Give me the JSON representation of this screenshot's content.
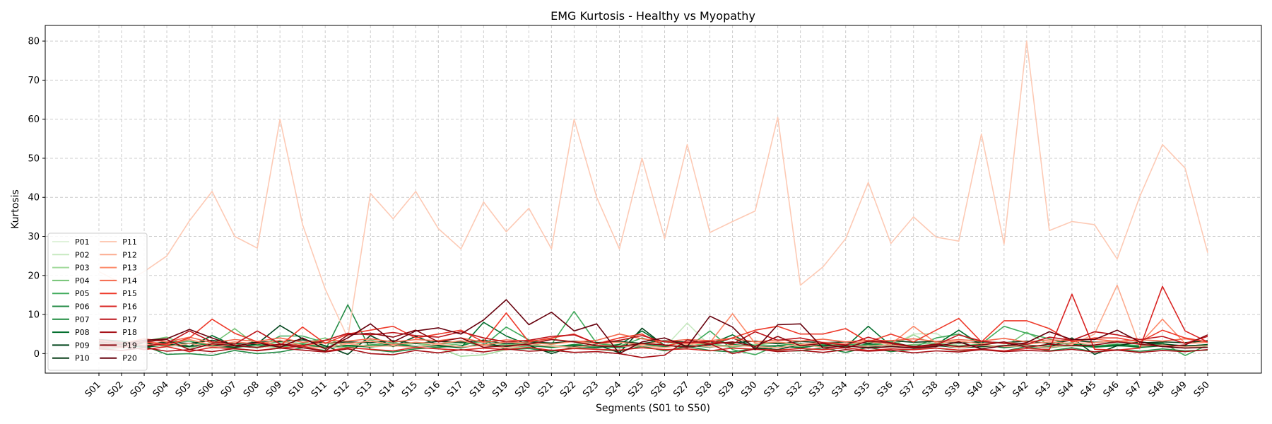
{
  "chart_data": {
    "type": "line",
    "title": "EMG Kurtosis - Healthy vs Myopathy",
    "xlabel": "Segments (S01 to S50)",
    "ylabel": "Kurtosis",
    "ylim": [
      -5,
      84
    ],
    "yticks": [
      0,
      10,
      20,
      30,
      40,
      50,
      60,
      70,
      80
    ],
    "grid": true,
    "legend_position": "lower-left",
    "categories": [
      "S01",
      "S02",
      "S03",
      "S04",
      "S05",
      "S06",
      "S07",
      "S08",
      "S09",
      "S10",
      "S11",
      "S12",
      "S13",
      "S14",
      "S15",
      "S16",
      "S17",
      "S18",
      "S19",
      "S20",
      "S21",
      "S22",
      "S23",
      "S24",
      "S25",
      "S26",
      "S27",
      "S28",
      "S29",
      "S30",
      "S31",
      "S32",
      "S33",
      "S34",
      "S35",
      "S36",
      "S37",
      "S38",
      "S39",
      "S40",
      "S41",
      "S42",
      "S43",
      "S44",
      "S45",
      "S46",
      "S47",
      "S48",
      "S49",
      "S50"
    ],
    "series": [
      {
        "name": "P01",
        "color": "#e0f2db",
        "values": [
          2.5,
          1.8,
          2.2,
          1.5,
          2.8,
          1.2,
          2.0,
          1.6,
          2.4,
          1.9,
          1.3,
          2.7,
          1.8,
          2.1,
          1.4,
          2.6,
          1.7,
          2.3,
          1.5,
          2.0,
          1.8,
          2.4,
          1.6,
          2.2,
          1.9,
          1.4,
          2.5,
          1.7,
          2.1,
          1.8,
          1.5,
          2.3,
          1.9,
          1.6,
          2.2,
          1.4,
          2.0,
          1.8,
          2.5,
          1.6,
          2.1,
          1.9,
          1.5,
          2.4,
          1.7,
          2.0,
          1.6,
          2.3,
          1.8,
          1.9
        ]
      },
      {
        "name": "P02",
        "color": "#c7e9c0",
        "values": [
          3.0,
          2.2,
          1.5,
          2.8,
          1.9,
          2.4,
          1.6,
          2.0,
          1.3,
          2.6,
          1.8,
          2.1,
          1.5,
          2.3,
          1.7,
          2.0,
          1.4,
          2.5,
          1.9,
          1.6,
          2.2,
          1.8,
          1.5,
          2.0,
          2.7,
          1.6,
          7.8,
          2.0,
          1.8,
          2.4,
          1.6,
          2.1,
          1.7,
          2.3,
          1.5,
          2.0,
          5.0,
          5.2,
          1.9,
          1.6,
          2.2,
          1.8,
          1.5,
          2.1,
          1.7,
          2.3,
          1.4,
          2.0,
          1.8,
          1.6
        ]
      },
      {
        "name": "P03",
        "color": "#a1d99b",
        "values": [
          2.0,
          3.2,
          1.8,
          2.5,
          1.4,
          2.9,
          1.7,
          2.2,
          1.5,
          2.7,
          1.9,
          1.4,
          2.4,
          1.8,
          2.6,
          1.5,
          -0.7,
          -0.3,
          1.0,
          2.2,
          1.5,
          2.0,
          1.7,
          2.4,
          1.6,
          2.1,
          1.9,
          2.3,
          1.5,
          1.0,
          2.0,
          1.7,
          2.2,
          1.5,
          2.4,
          1.8,
          4.8,
          2.0,
          1.6,
          2.3,
          1.8,
          2.1,
          1.5,
          2.0,
          1.7,
          2.4,
          1.6,
          2.2,
          1.9,
          1.7
        ]
      },
      {
        "name": "P04",
        "color": "#74c476",
        "values": [
          1.5,
          2.6,
          3.2,
          4.2,
          1.8,
          2.4,
          6.4,
          2.0,
          3.0,
          2.6,
          4.0,
          1.7,
          3.5,
          2.1,
          2.8,
          1.9,
          2.5,
          3.0,
          2.2,
          2.7,
          1.6,
          2.3,
          2.9,
          1.8,
          2.4,
          3.1,
          2.0,
          2.6,
          1.7,
          2.2,
          2.8,
          1.9,
          2.5,
          2.1,
          3.0,
          1.8,
          2.3,
          2.7,
          2.0,
          2.4,
          1.6,
          5.5,
          2.2,
          2.8,
          1.9,
          2.5,
          2.0,
          2.6,
          1.8,
          2.3
        ]
      },
      {
        "name": "P05",
        "color": "#41ab5d",
        "values": [
          1.8,
          2.3,
          1.6,
          2.9,
          3.2,
          2.0,
          2.5,
          1.4,
          4.5,
          4.5,
          2.8,
          1.6,
          2.2,
          2.9,
          1.7,
          2.4,
          3.0,
          2.0,
          6.8,
          3.5,
          2.3,
          10.8,
          2.6,
          1.8,
          4.0,
          2.2,
          1.5,
          5.8,
          1.0,
          -0.3,
          2.1,
          2.6,
          1.8,
          2.4,
          2.0,
          3.1,
          1.6,
          4.0,
          5.0,
          2.5,
          7.0,
          5.2,
          3.8,
          2.1,
          1.7,
          2.4,
          2.0,
          2.8,
          -0.5,
          2.2
        ]
      },
      {
        "name": "P06",
        "color": "#238b45",
        "values": [
          1.2,
          1.5,
          2.0,
          -0.2,
          0.0,
          -0.5,
          0.8,
          0.0,
          0.4,
          1.5,
          0.8,
          12.5,
          1.0,
          0.4,
          1.2,
          1.6,
          2.0,
          3.5,
          1.0,
          1.3,
          0.5,
          1.6,
          1.1,
          0.6,
          1.9,
          0.7,
          1.8,
          0.8,
          0.4,
          1.3,
          0.6,
          0.7,
          1.5,
          0.3,
          1.6,
          0.5,
          1.1,
          1.4,
          0.8,
          1.0,
          0.6,
          1.8,
          0.7,
          1.5,
          0.4,
          1.0,
          0.6,
          1.2,
          0.7,
          0.9
        ]
      },
      {
        "name": "P07",
        "color": "#1c8a3f",
        "values": [
          2.2,
          1.7,
          2.4,
          1.9,
          2.6,
          2.0,
          1.5,
          2.3,
          1.8,
          2.4,
          1.6,
          2.1,
          1.9,
          2.5,
          1.7,
          2.2,
          1.5,
          2.4,
          1.8,
          2.0,
          1.6,
          2.3,
          1.9,
          1.5,
          2.4,
          1.8,
          2.1,
          1.6,
          2.3,
          1.9,
          2.0,
          1.5,
          2.2,
          1.7,
          2.4,
          1.9,
          1.6,
          2.0,
          1.8,
          2.3,
          1.5,
          2.1,
          1.9,
          2.2,
          1.6,
          2.0,
          1.8,
          2.4,
          1.7,
          2.1
        ]
      },
      {
        "name": "P08",
        "color": "#006d2c",
        "values": [
          1.9,
          2.4,
          1.6,
          2.2,
          1.8,
          4.6,
          2.0,
          1.5,
          2.3,
          1.9,
          1.6,
          2.1,
          1.7,
          2.4,
          1.8,
          2.0,
          1.5,
          8.0,
          4.5,
          2.2,
          1.7,
          2.0,
          1.5,
          2.3,
          5.8,
          2.1,
          1.6,
          2.4,
          4.8,
          1.8,
          2.0,
          1.5,
          2.2,
          1.7,
          7.0,
          2.0,
          1.6,
          2.3,
          6.0,
          2.1,
          1.7,
          2.0,
          1.5,
          2.4,
          1.8,
          2.2,
          1.6,
          2.0,
          1.9,
          2.3
        ]
      },
      {
        "name": "P09",
        "color": "#00441b",
        "values": [
          2.6,
          2.0,
          1.7,
          2.4,
          1.9,
          2.2,
          1.6,
          2.5,
          7.2,
          3.8,
          2.0,
          -0.2,
          4.6,
          1.8,
          4.4,
          2.2,
          1.6,
          2.4,
          1.9,
          2.1,
          0.0,
          1.8,
          2.3,
          0.2,
          6.5,
          2.0,
          1.8,
          2.2,
          4.0,
          1.5,
          1.0,
          2.4,
          1.8,
          2.0,
          1.6,
          2.3,
          1.9,
          2.1,
          1.5,
          1.8,
          2.0,
          2.2,
          1.6,
          4.0,
          -0.2,
          2.0,
          3.0,
          2.4,
          2.0,
          2.2
        ]
      },
      {
        "name": "P10",
        "color": "#083d18",
        "values": [
          3.6,
          3.2,
          2.4,
          3.0,
          2.6,
          3.4,
          2.5,
          2.9,
          3.1,
          3.5,
          2.7,
          3.0,
          2.8,
          3.3,
          2.6,
          3.1,
          2.9,
          3.4,
          2.5,
          3.0,
          2.7,
          3.2,
          2.8,
          3.1,
          2.6,
          3.3,
          2.9,
          3.0,
          2.7,
          3.2,
          2.5,
          3.1,
          2.8,
          3.0,
          2.6,
          3.3,
          2.9,
          3.1,
          2.7,
          3.0,
          2.8,
          3.2,
          2.6,
          3.4,
          2.9,
          3.1,
          2.7,
          3.0,
          2.8,
          3.3
        ]
      },
      {
        "name": "P11",
        "color": "#fdcab5",
        "values": [
          21.0,
          18.0,
          21.0,
          25.0,
          34.0,
          41.5,
          30.0,
          27.0,
          60.0,
          33.0,
          16.5,
          4.0,
          41.0,
          34.5,
          41.5,
          32.0,
          26.8,
          38.8,
          31.2,
          37.2,
          26.8,
          60.0,
          40.0,
          26.8,
          50.0,
          29.4,
          53.5,
          31.0,
          33.8,
          36.5,
          60.5,
          17.5,
          22.2,
          29.4,
          43.8,
          28.2,
          35.0,
          29.8,
          28.8,
          56.2,
          28.0,
          80.0,
          31.5,
          33.8,
          33.0,
          24.2,
          40.2,
          53.5,
          47.5,
          25.8
        ]
      },
      {
        "name": "P12",
        "color": "#fcab8f",
        "values": [
          2.0,
          1.5,
          2.4,
          1.8,
          2.6,
          1.7,
          2.2,
          1.5,
          2.3,
          1.9,
          1.4,
          2.5,
          1.8,
          2.0,
          1.6,
          2.4,
          1.7,
          2.1,
          1.5,
          2.3,
          1.9,
          1.6,
          2.2,
          1.8,
          2.0,
          1.5,
          2.4,
          1.7,
          2.1,
          1.8,
          1.5,
          2.3,
          1.6,
          2.0,
          1.9,
          2.2,
          1.7,
          2.4,
          1.5,
          2.1,
          1.8,
          2.0,
          1.6,
          2.3,
          5.0,
          17.5,
          1.9,
          2.2,
          1.7,
          2.0
        ]
      },
      {
        "name": "P13",
        "color": "#fc8a6a",
        "values": [
          2.8,
          2.0,
          3.2,
          2.4,
          3.6,
          2.2,
          3.0,
          2.5,
          3.4,
          2.1,
          2.8,
          2.6,
          3.2,
          2.3,
          2.9,
          2.5,
          3.3,
          2.2,
          3.0,
          2.7,
          2.4,
          3.1,
          2.6,
          2.9,
          2.3,
          3.2,
          2.5,
          2.8,
          10.2,
          2.6,
          3.0,
          2.3,
          2.9,
          2.5,
          3.1,
          2.4,
          7.0,
          2.7,
          3.2,
          2.5,
          2.9,
          2.4,
          3.0,
          2.6,
          2.8,
          3.3,
          2.5,
          8.8,
          2.6,
          2.9
        ]
      },
      {
        "name": "P14",
        "color": "#f4694c",
        "values": [
          3.2,
          2.6,
          3.8,
          3.0,
          4.2,
          2.8,
          3.6,
          3.1,
          4.0,
          2.9,
          3.4,
          3.2,
          3.8,
          3.0,
          3.6,
          3.3,
          4.0,
          2.9,
          3.5,
          3.2,
          3.7,
          3.0,
          3.4,
          5.0,
          3.8,
          3.1,
          3.6,
          3.3,
          3.9,
          3.0,
          3.5,
          3.2,
          3.7,
          3.0,
          3.4,
          3.3,
          3.8,
          3.1,
          3.6,
          3.2,
          3.9,
          3.0,
          3.5,
          3.3,
          3.7,
          3.1,
          3.6,
          3.2,
          3.8,
          3.0
        ]
      },
      {
        "name": "P15",
        "color": "#ee3b2b",
        "values": [
          2.0,
          1.5,
          3.0,
          2.2,
          4.0,
          8.8,
          5.2,
          3.0,
          2.0,
          6.8,
          2.6,
          5.0,
          6.0,
          7.0,
          4.0,
          5.0,
          6.0,
          3.0,
          10.4,
          3.0,
          4.0,
          5.0,
          2.5,
          4.0,
          5.0,
          2.0,
          3.0,
          2.5,
          4.0,
          6.0,
          7.0,
          5.0,
          5.0,
          6.4,
          3.0,
          5.0,
          3.0,
          6.0,
          9.0,
          3.0,
          8.4,
          8.4,
          6.4,
          3.0,
          4.0,
          4.0,
          3.0,
          6.0,
          4.0,
          3.0
        ]
      },
      {
        "name": "P16",
        "color": "#d92523",
        "values": [
          1.5,
          2.0,
          1.0,
          1.8,
          0.5,
          1.6,
          1.2,
          0.8,
          1.4,
          1.9,
          0.6,
          1.5,
          1.1,
          0.7,
          1.6,
          1.2,
          0.9,
          1.4,
          1.0,
          1.6,
          0.8,
          1.3,
          1.1,
          0.9,
          1.5,
          1.0,
          1.2,
          0.7,
          1.4,
          1.1,
          0.9,
          1.3,
          1.0,
          1.5,
          0.8,
          1.2,
          1.0,
          1.4,
          0.9,
          1.1,
          0.7,
          1.3,
          1.0,
          15.2,
          1.1,
          0.9,
          1.4,
          17.2,
          5.8,
          3.0
        ]
      },
      {
        "name": "P17",
        "color": "#bc141a",
        "values": [
          3.5,
          2.8,
          2.0,
          2.6,
          5.8,
          3.0,
          2.4,
          5.8,
          2.5,
          2.0,
          3.4,
          5.2,
          4.8,
          5.4,
          4.6,
          4.2,
          5.6,
          4.0,
          3.0,
          3.4,
          4.4,
          4.8,
          2.6,
          3.4,
          4.6,
          3.0,
          2.8,
          3.2,
          2.4,
          5.6,
          3.4,
          4.0,
          2.8,
          2.2,
          4.2,
          2.6,
          1.6,
          2.2,
          4.8,
          3.2,
          2.6,
          2.4,
          4.2,
          3.4,
          5.6,
          4.8,
          3.6,
          4.4,
          2.6,
          4.4
        ]
      },
      {
        "name": "P18",
        "color": "#a50f15",
        "values": [
          1.2,
          0.8,
          1.5,
          0.6,
          1.0,
          0.5,
          1.3,
          0.7,
          1.4,
          0.9,
          0.4,
          1.2,
          0.0,
          -0.3,
          0.8,
          0.2,
          1.0,
          0.4,
          1.2,
          0.6,
          0.9,
          0.3,
          0.5,
          0.0,
          -1.0,
          -0.4,
          3.5,
          2.5,
          0.0,
          1.2,
          0.5,
          0.8,
          0.3,
          1.0,
          0.6,
          0.9,
          0.2,
          0.7,
          0.4,
          1.0,
          0.5,
          0.8,
          0.6,
          1.1,
          0.4,
          0.9,
          0.3,
          0.8,
          0.5,
          1.0
        ]
      },
      {
        "name": "P19",
        "color": "#8b0a12",
        "values": [
          2.2,
          1.8,
          3.0,
          3.6,
          1.0,
          2.5,
          2.0,
          1.6,
          2.4,
          1.5,
          0.6,
          4.8,
          5.2,
          4.2,
          6.0,
          3.0,
          4.0,
          1.6,
          2.0,
          2.4,
          3.6,
          3.0,
          2.0,
          1.8,
          2.6,
          2.2,
          1.6,
          2.4,
          3.0,
          1.8,
          4.4,
          2.0,
          2.6,
          1.4,
          3.2,
          2.8,
          1.8,
          2.4,
          1.8,
          2.2,
          3.0,
          1.6,
          2.4,
          2.0,
          2.2,
          3.0,
          2.4,
          1.8,
          2.2,
          4.8
        ]
      },
      {
        "name": "P20",
        "color": "#67000d",
        "values": [
          3.0,
          2.4,
          3.4,
          3.8,
          6.2,
          4.0,
          2.0,
          2.8,
          1.6,
          4.0,
          1.2,
          4.0,
          7.6,
          3.0,
          5.8,
          6.6,
          5.0,
          8.6,
          13.8,
          7.4,
          10.6,
          5.8,
          7.6,
          0.0,
          3.0,
          4.0,
          1.8,
          9.6,
          6.8,
          1.0,
          7.4,
          7.6,
          1.4,
          2.0,
          1.4,
          1.8,
          1.4,
          1.8,
          3.0,
          1.2,
          2.0,
          2.8,
          5.6,
          3.6,
          3.6,
          6.0,
          3.0,
          1.8,
          1.4,
          1.6
        ]
      }
    ]
  }
}
